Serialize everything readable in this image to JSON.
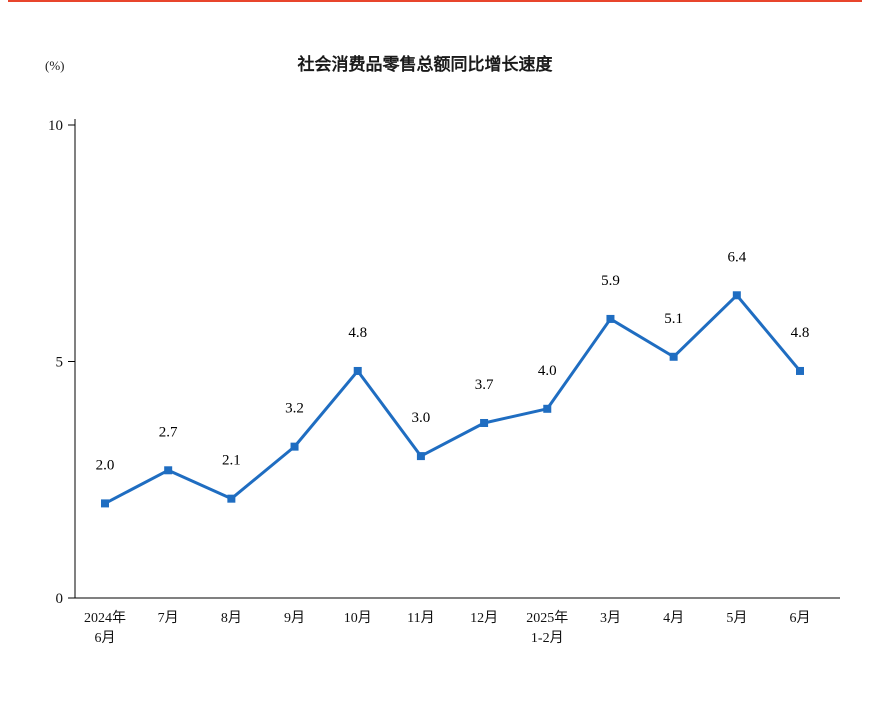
{
  "page": {
    "top_border_color": "#e8452c",
    "background_color": "#ffffff"
  },
  "chart_data": {
    "type": "line",
    "title": "社会消费品零售总额同比增长速度",
    "unit_label": "(%)",
    "categories": [
      [
        "2024年",
        "6月"
      ],
      [
        "7月"
      ],
      [
        "8月"
      ],
      [
        "9月"
      ],
      [
        "10月"
      ],
      [
        "11月"
      ],
      [
        "12月"
      ],
      [
        "2025年",
        "1-2月"
      ],
      [
        "3月"
      ],
      [
        "4月"
      ],
      [
        "5月"
      ],
      [
        "6月"
      ]
    ],
    "values": [
      2.0,
      2.7,
      2.1,
      3.2,
      4.8,
      3.0,
      3.7,
      4.0,
      5.9,
      5.1,
      6.4,
      4.8
    ],
    "labels": [
      "2.0",
      "2.7",
      "2.1",
      "3.2",
      "4.8",
      "3.0",
      "3.7",
      "4.0",
      "5.9",
      "5.1",
      "6.4",
      "4.8"
    ],
    "ylim": [
      0,
      10
    ],
    "yticks": [
      0,
      5,
      10
    ],
    "line_color": "#1f6dc1",
    "marker": "square",
    "grid": false,
    "legend": "none",
    "xlabel": "",
    "ylabel": ""
  }
}
